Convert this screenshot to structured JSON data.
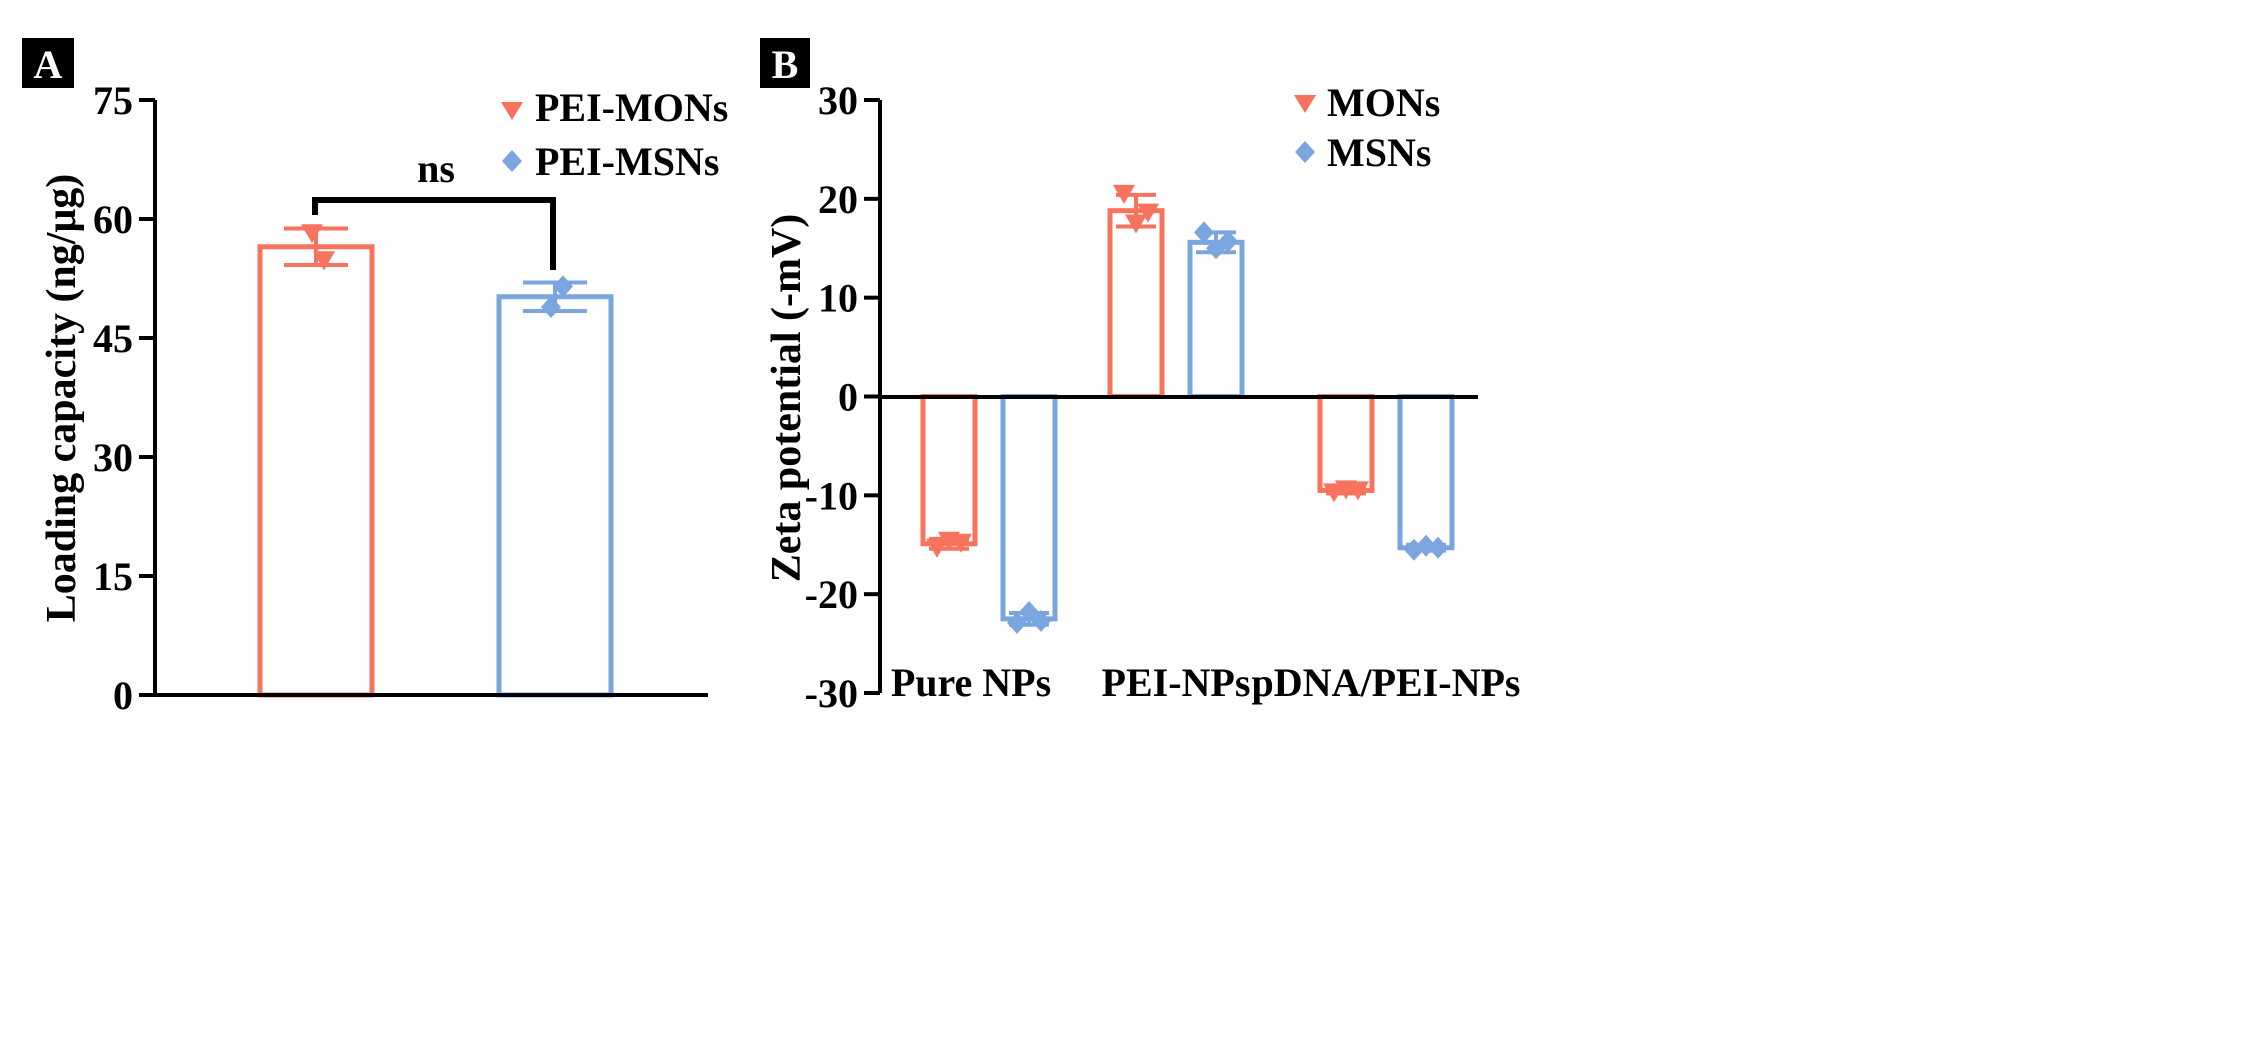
{
  "colors": {
    "mons": "#F7735E",
    "msns": "#7BA5DE",
    "axis": "#000000"
  },
  "chart_data": [
    {
      "panel_label": "A",
      "type": "bar",
      "ylabel": "Loading capacity (ng/μg)",
      "ylim": [
        0,
        75
      ],
      "yticks": [
        "0",
        "15",
        "30",
        "45",
        "60",
        "75"
      ],
      "ytick_values": [
        0,
        15,
        30,
        45,
        60,
        75
      ],
      "categories": [
        "PEI-MONs",
        "PEI-MSNs"
      ],
      "values": [
        56.5,
        50.2
      ],
      "errors": [
        2.3,
        1.8
      ],
      "points": [
        [
          58.2,
          54.8
        ],
        [
          48.9,
          51.5
        ]
      ],
      "markers": [
        "triangle-down",
        "diamond"
      ],
      "legend": [
        "PEI-MONs",
        "PEI-MSNs"
      ],
      "legend_position": "top-right",
      "annotation": "ns"
    },
    {
      "panel_label": "B",
      "type": "bar",
      "ylabel": "Zeta potential (-mV)",
      "ylim": [
        -30,
        30
      ],
      "yticks": [
        "30",
        "20",
        "10",
        "0",
        "-10",
        "-20",
        "-30"
      ],
      "ytick_values": [
        30,
        20,
        10,
        0,
        -10,
        -20,
        -30
      ],
      "categories": [
        "Pure NPs",
        "PEI-NPs",
        "pDNA/PEI-NPs"
      ],
      "legend": [
        "MONs",
        "MSNs"
      ],
      "legend_position": "top-right",
      "series": [
        {
          "name": "MONs",
          "values": [
            -14.9,
            18.8,
            -9.5
          ],
          "errors": [
            0.5,
            1.6,
            0.3
          ],
          "points": [
            [
              -15.3,
              -14.6,
              -14.8
            ],
            [
              20.5,
              17.5,
              18.6
            ],
            [
              -9.7,
              -9.4,
              -9.5
            ]
          ]
        },
        {
          "name": "MSNs",
          "values": [
            -22.5,
            15.6,
            -15.3
          ],
          "errors": [
            0.6,
            1.0,
            0.3
          ],
          "points": [
            [
              -22.9,
              -21.8,
              -22.7
            ],
            [
              16.6,
              15.0,
              15.7
            ],
            [
              -15.5,
              -15.1,
              -15.3
            ]
          ]
        }
      ]
    }
  ]
}
